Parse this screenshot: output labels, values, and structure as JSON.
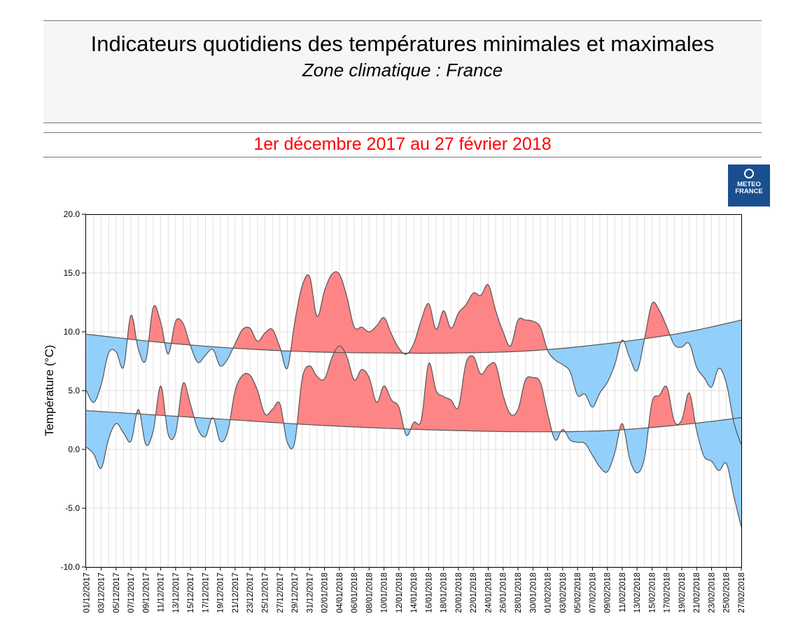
{
  "header": {
    "title": "Indicateurs quotidiens des températures minimales et maximales",
    "subtitle": "Zone climatique : France"
  },
  "period": "1er décembre 2017 au 27 février 2018",
  "logo": {
    "line1": "METEO",
    "line2": "FRANCE"
  },
  "colors": {
    "above_normal": "#fd8585",
    "below_normal": "#92cffa",
    "line": "#555555"
  },
  "chart_data": {
    "type": "area",
    "ylabel": "Température (°C)",
    "ylim": [
      -10,
      20
    ],
    "y_ticks": [
      "-10.0",
      "-5.0",
      "0.0",
      "5.0",
      "10.0",
      "15.0",
      "20.0"
    ],
    "grid": true,
    "x_tick_labels": [
      "01/12/2017",
      "03/12/2017",
      "05/12/2017",
      "07/12/2017",
      "09/12/2017",
      "11/12/2017",
      "13/12/2017",
      "15/12/2017",
      "17/12/2017",
      "19/12/2017",
      "21/12/2017",
      "23/12/2017",
      "25/12/2017",
      "27/12/2017",
      "29/12/2017",
      "31/12/2017",
      "02/01/2018",
      "04/01/2018",
      "06/01/2018",
      "08/01/2018",
      "10/01/2018",
      "12/01/2018",
      "14/01/2018",
      "16/01/2018",
      "18/01/2018",
      "20/01/2018",
      "22/01/2018",
      "24/01/2018",
      "26/01/2018",
      "28/01/2018",
      "30/01/2018",
      "01/02/2018",
      "03/02/2018",
      "05/02/2018",
      "07/02/2018",
      "09/02/2018",
      "11/02/2018",
      "13/02/2018",
      "15/02/2018",
      "17/02/2018",
      "19/02/2018",
      "21/02/2018",
      "23/02/2018",
      "25/02/2018",
      "27/02/2018"
    ],
    "series": [
      {
        "key": "tmax",
        "values": [
          5.0,
          4.0,
          5.5,
          8.2,
          8.3,
          7.0,
          11.4,
          8.5,
          7.6,
          12.1,
          10.8,
          8.1,
          10.9,
          10.7,
          8.8,
          7.4,
          8.0,
          8.5,
          7.1,
          7.7,
          9.0,
          10.2,
          10.3,
          9.2,
          9.9,
          10.2,
          8.7,
          6.9,
          10.8,
          13.9,
          14.7,
          11.3,
          13.5,
          14.9,
          14.9,
          13.0,
          10.4,
          10.4,
          10.0,
          10.5,
          11.2,
          9.8,
          8.6,
          8.1,
          9.0,
          11.0,
          12.4,
          10.2,
          11.8,
          10.3,
          11.6,
          12.3,
          13.3,
          13.1,
          14.0,
          11.8,
          10.0,
          8.8,
          11.0,
          11.0,
          10.9,
          10.4,
          8.4,
          7.6,
          7.2,
          6.6,
          4.6,
          4.7,
          3.6,
          4.8,
          5.7,
          7.2,
          9.3,
          7.8,
          6.7,
          9.4,
          12.4,
          11.8,
          10.4,
          8.9,
          8.7,
          9.0,
          7.0,
          6.1,
          5.3,
          6.9,
          5.6,
          2.3,
          0.4
        ]
      },
      {
        "key": "tmin",
        "values": [
          0.2,
          -0.4,
          -1.6,
          0.9,
          2.2,
          1.4,
          0.7,
          3.4,
          0.4,
          1.6,
          5.4,
          1.3,
          1.4,
          5.6,
          3.8,
          1.7,
          1.1,
          2.7,
          0.7,
          1.5,
          5.0,
          6.3,
          6.3,
          5.0,
          3.0,
          3.4,
          3.9,
          0.6,
          0.6,
          6.0,
          7.1,
          6.2,
          6.0,
          7.8,
          8.8,
          7.9,
          5.9,
          6.8,
          6.1,
          4.0,
          5.4,
          4.2,
          3.6,
          1.2,
          2.3,
          2.5,
          7.3,
          5.0,
          4.5,
          4.2,
          3.6,
          7.3,
          7.9,
          6.4,
          7.1,
          7.2,
          4.6,
          3.0,
          3.4,
          5.9,
          6.1,
          5.7,
          3.0,
          0.8,
          1.7,
          0.8,
          0.6,
          0.5,
          -0.5,
          -1.5,
          -1.9,
          -0.3,
          2.2,
          -0.8,
          -2.0,
          -0.7,
          4.0,
          4.6,
          5.3,
          2.4,
          2.5,
          4.8,
          1.6,
          -0.6,
          -1.0,
          -1.8,
          -1.2,
          -4.0,
          -6.6
        ]
      }
    ],
    "normals": [
      {
        "key": "tmax_normal",
        "dates": [
          "01/12/2017",
          "11/12/2017",
          "21/12/2017",
          "31/12/2017",
          "10/01/2018",
          "20/01/2018",
          "30/01/2018",
          "09/02/2018",
          "19/02/2018",
          "27/02/2018"
        ],
        "values": [
          9.8,
          9.1,
          8.6,
          8.3,
          8.2,
          8.2,
          8.4,
          9.0,
          9.9,
          11.0
        ]
      },
      {
        "key": "tmin_normal",
        "dates": [
          "01/12/2017",
          "11/12/2017",
          "21/12/2017",
          "31/12/2017",
          "10/01/2018",
          "20/01/2018",
          "30/01/2018",
          "09/02/2018",
          "19/02/2018",
          "27/02/2018"
        ],
        "values": [
          3.3,
          2.9,
          2.5,
          2.1,
          1.8,
          1.6,
          1.5,
          1.6,
          2.1,
          2.7
        ]
      }
    ]
  }
}
